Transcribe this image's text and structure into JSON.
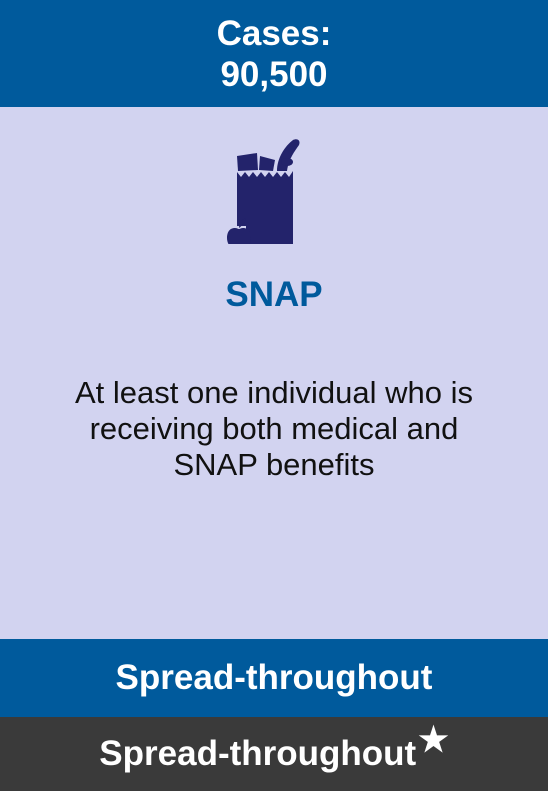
{
  "header": {
    "line1": "Cases:",
    "line2": "90,500"
  },
  "program": {
    "icon": "grocery-bag-icon",
    "name": "SNAP",
    "description": "At least one individual who is receiving both medical and SNAP benefits"
  },
  "footer": {
    "blue_label": "Spread-throughout",
    "dark_label": "Spread-throughout",
    "dark_marker": "★"
  },
  "colors": {
    "header_blue": "#005a9c",
    "body_lavender": "#d2d3f0",
    "icon_navy": "#23236b",
    "footer_dark": "#3a3a3a"
  }
}
